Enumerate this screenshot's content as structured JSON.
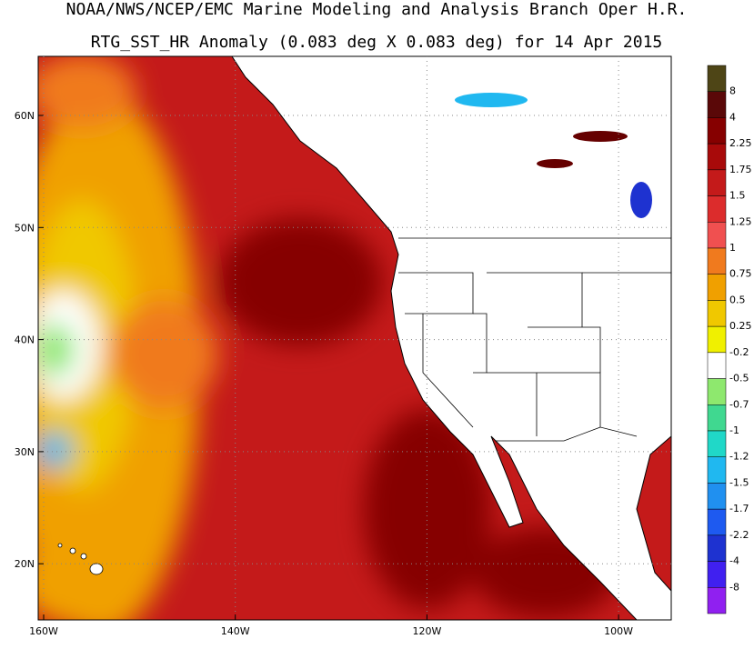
{
  "title": {
    "line1": "NOAA/NWS/NCEP/EMC Marine Modeling and Analysis Branch Oper H.R.",
    "line2": "RTG_SST_HR Anomaly (0.083 deg X 0.083 deg) for 14 Apr 2015"
  },
  "axes": {
    "lat_labels": [
      "60N",
      "50N",
      "40N",
      "30N",
      "20N"
    ],
    "lon_labels": [
      "160W",
      "140W",
      "120W",
      "100W"
    ]
  },
  "colorbar": {
    "labels": [
      "8",
      "4",
      "2.25",
      "1.75",
      "1.5",
      "1.25",
      "1",
      "0.75",
      "0.5",
      "0.25",
      "-0.2",
      "-0.5",
      "-0.7",
      "-1",
      "-1.2",
      "-1.5",
      "-1.7",
      "-2.2",
      "-4",
      "-8"
    ],
    "colors": [
      "#4e4516",
      "#5a0808",
      "#860000",
      "#a80a0a",
      "#c41a1a",
      "#dc2c2c",
      "#f05050",
      "#f07a1e",
      "#f0a000",
      "#f0c800",
      "#f0f000",
      "#ffffff",
      "#8ee86e",
      "#40d890",
      "#20d8c8",
      "#20b8f0",
      "#2090f0",
      "#1e5af0",
      "#1e32d0",
      "#4020f0",
      "#9020f0"
    ]
  }
}
